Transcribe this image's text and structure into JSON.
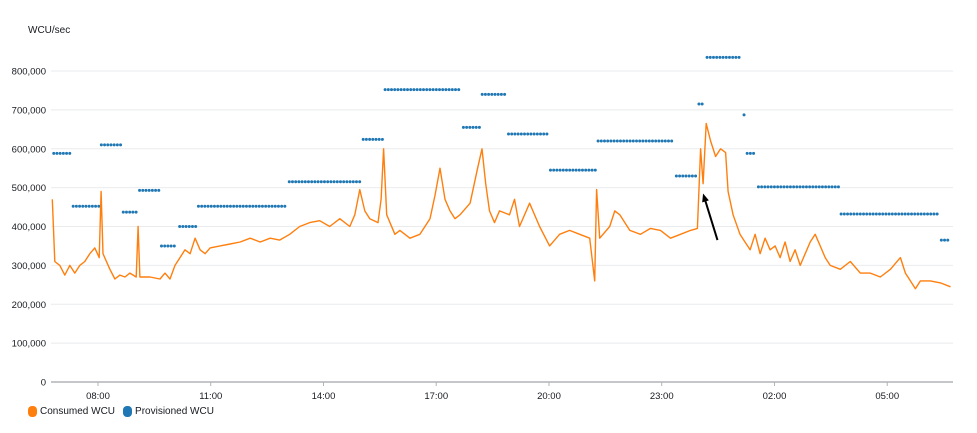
{
  "chart_data": {
    "type": "line",
    "title": "",
    "ylabel": "WCU/sec",
    "xlabel": "",
    "ylim": [
      0,
      800000
    ],
    "y_ticks": [
      0,
      100000,
      200000,
      300000,
      400000,
      500000,
      600000,
      700000,
      800000
    ],
    "y_tick_labels": [
      "0",
      "100,000",
      "200,000",
      "300,000",
      "400,000",
      "500,000",
      "600,000",
      "700,000",
      "800,000"
    ],
    "x_range": [
      "06:45",
      "06:45"
    ],
    "x_tick_labels": [
      "08:00",
      "11:00",
      "14:00",
      "17:00",
      "20:00",
      "23:00",
      "02:00",
      "05:00"
    ],
    "grid": true,
    "legend_placement": "bottom-left",
    "series": [
      {
        "name": "Consumed WCU",
        "color": "#ff7f0e",
        "style": "line",
        "points": [
          [
            "06:47",
            470000
          ],
          [
            "06:51",
            310000
          ],
          [
            "06:59",
            300000
          ],
          [
            "07:07",
            275000
          ],
          [
            "07:15",
            300000
          ],
          [
            "07:23",
            280000
          ],
          [
            "07:31",
            300000
          ],
          [
            "07:39",
            310000
          ],
          [
            "07:47",
            330000
          ],
          [
            "07:55",
            345000
          ],
          [
            "08:02",
            320000
          ],
          [
            "08:05",
            490000
          ],
          [
            "08:08",
            330000
          ],
          [
            "08:19",
            290000
          ],
          [
            "08:27",
            265000
          ],
          [
            "08:35",
            275000
          ],
          [
            "08:43",
            270000
          ],
          [
            "08:51",
            280000
          ],
          [
            "09:01",
            270000
          ],
          [
            "09:04",
            400000
          ],
          [
            "09:07",
            270000
          ],
          [
            "09:23",
            270000
          ],
          [
            "09:39",
            265000
          ],
          [
            "09:47",
            280000
          ],
          [
            "09:55",
            265000
          ],
          [
            "10:03",
            300000
          ],
          [
            "10:11",
            320000
          ],
          [
            "10:19",
            340000
          ],
          [
            "10:27",
            330000
          ],
          [
            "10:35",
            370000
          ],
          [
            "10:43",
            340000
          ],
          [
            "10:51",
            330000
          ],
          [
            "10:59",
            345000
          ],
          [
            "11:15",
            350000
          ],
          [
            "11:31",
            355000
          ],
          [
            "11:47",
            360000
          ],
          [
            "12:03",
            370000
          ],
          [
            "12:19",
            360000
          ],
          [
            "12:35",
            370000
          ],
          [
            "12:50",
            365000
          ],
          [
            "13:06",
            380000
          ],
          [
            "13:22",
            400000
          ],
          [
            "13:38",
            410000
          ],
          [
            "13:54",
            415000
          ],
          [
            "14:10",
            400000
          ],
          [
            "14:26",
            420000
          ],
          [
            "14:42",
            400000
          ],
          [
            "14:50",
            430000
          ],
          [
            "14:58",
            495000
          ],
          [
            "15:06",
            440000
          ],
          [
            "15:14",
            420000
          ],
          [
            "15:27",
            410000
          ],
          [
            "15:32",
            470000
          ],
          [
            "15:36",
            600000
          ],
          [
            "15:41",
            430000
          ],
          [
            "15:54",
            380000
          ],
          [
            "16:02",
            390000
          ],
          [
            "16:18",
            370000
          ],
          [
            "16:34",
            380000
          ],
          [
            "16:50",
            420000
          ],
          [
            "16:58",
            480000
          ],
          [
            "17:06",
            550000
          ],
          [
            "17:14",
            470000
          ],
          [
            "17:22",
            440000
          ],
          [
            "17:30",
            420000
          ],
          [
            "17:38",
            430000
          ],
          [
            "17:54",
            460000
          ],
          [
            "18:06",
            550000
          ],
          [
            "18:13",
            600000
          ],
          [
            "18:19",
            510000
          ],
          [
            "18:25",
            440000
          ],
          [
            "18:33",
            410000
          ],
          [
            "18:41",
            440000
          ],
          [
            "18:57",
            430000
          ],
          [
            "19:05",
            470000
          ],
          [
            "19:13",
            400000
          ],
          [
            "19:29",
            460000
          ],
          [
            "19:45",
            400000
          ],
          [
            "20:01",
            350000
          ],
          [
            "20:17",
            380000
          ],
          [
            "20:33",
            390000
          ],
          [
            "20:49",
            380000
          ],
          [
            "21:05",
            370000
          ],
          [
            "21:13",
            260000
          ],
          [
            "21:16",
            495000
          ],
          [
            "21:21",
            370000
          ],
          [
            "21:37",
            400000
          ],
          [
            "21:45",
            440000
          ],
          [
            "21:53",
            430000
          ],
          [
            "22:09",
            390000
          ],
          [
            "22:26",
            380000
          ],
          [
            "22:42",
            395000
          ],
          [
            "22:58",
            390000
          ],
          [
            "23:14",
            370000
          ],
          [
            "23:30",
            380000
          ],
          [
            "23:46",
            390000
          ],
          [
            "23:57",
            395000
          ],
          [
            "00:02",
            600000
          ],
          [
            "00:06",
            510000
          ],
          [
            "00:11",
            665000
          ],
          [
            "00:18",
            620000
          ],
          [
            "00:26",
            580000
          ],
          [
            "00:34",
            600000
          ],
          [
            "00:42",
            590000
          ],
          [
            "00:46",
            490000
          ],
          [
            "00:54",
            430000
          ],
          [
            "01:05",
            380000
          ],
          [
            "01:13",
            360000
          ],
          [
            "01:21",
            340000
          ],
          [
            "01:29",
            380000
          ],
          [
            "01:37",
            330000
          ],
          [
            "01:45",
            370000
          ],
          [
            "01:53",
            340000
          ],
          [
            "02:01",
            350000
          ],
          [
            "02:09",
            320000
          ],
          [
            "02:17",
            360000
          ],
          [
            "02:25",
            310000
          ],
          [
            "02:33",
            340000
          ],
          [
            "02:41",
            300000
          ],
          [
            "02:49",
            330000
          ],
          [
            "02:57",
            360000
          ],
          [
            "03:05",
            380000
          ],
          [
            "03:13",
            350000
          ],
          [
            "03:21",
            320000
          ],
          [
            "03:29",
            300000
          ],
          [
            "03:45",
            290000
          ],
          [
            "04:01",
            310000
          ],
          [
            "04:17",
            280000
          ],
          [
            "04:33",
            280000
          ],
          [
            "04:49",
            270000
          ],
          [
            "05:05",
            290000
          ],
          [
            "05:21",
            320000
          ],
          [
            "05:29",
            280000
          ],
          [
            "05:37",
            260000
          ],
          [
            "05:45",
            240000
          ],
          [
            "05:53",
            260000
          ],
          [
            "06:09",
            260000
          ],
          [
            "06:25",
            255000
          ],
          [
            "06:41",
            245000
          ]
        ]
      },
      {
        "name": "Provisioned WCU",
        "color": "#1f77b4",
        "style": "dots",
        "steps": [
          [
            "06:47",
            "07:18",
            588000
          ],
          [
            "07:18",
            "08:03",
            452000
          ],
          [
            "08:03",
            "08:38",
            610000
          ],
          [
            "08:38",
            "09:04",
            437000
          ],
          [
            "09:04",
            "09:39",
            493000
          ],
          [
            "09:39",
            "10:08",
            350000
          ],
          [
            "10:08",
            "10:38",
            400000
          ],
          [
            "10:38",
            "13:03",
            452000
          ],
          [
            "13:03",
            "15:01",
            515000
          ],
          [
            "15:01",
            "15:36",
            624000
          ],
          [
            "15:36",
            "17:41",
            752000
          ],
          [
            "17:41",
            "18:11",
            655000
          ],
          [
            "18:11",
            "18:53",
            740000
          ],
          [
            "18:53",
            "20:00",
            638000
          ],
          [
            "20:00",
            "21:16",
            545000
          ],
          [
            "21:16",
            "23:21",
            620000
          ],
          [
            "23:21",
            "23:57",
            530000
          ],
          [
            "23:57",
            "00:10",
            715000
          ],
          [
            "00:10",
            "01:09",
            835000
          ],
          [
            "01:09",
            "01:14",
            687000
          ],
          [
            "01:14",
            "01:32",
            588000
          ],
          [
            "01:32",
            "03:44",
            502000
          ],
          [
            "03:44",
            "06:24",
            432000
          ],
          [
            "06:24",
            "06:43",
            365000
          ]
        ]
      }
    ],
    "annotations": [
      {
        "type": "arrow",
        "color": "#000000",
        "from": [
          "00:29",
          365000
        ],
        "to": [
          "00:06",
          485000
        ]
      }
    ]
  },
  "legend": {
    "items": [
      {
        "label": "Consumed WCU",
        "color": "#ff7f0e"
      },
      {
        "label": "Provisioned WCU",
        "color": "#1f77b4"
      }
    ]
  }
}
